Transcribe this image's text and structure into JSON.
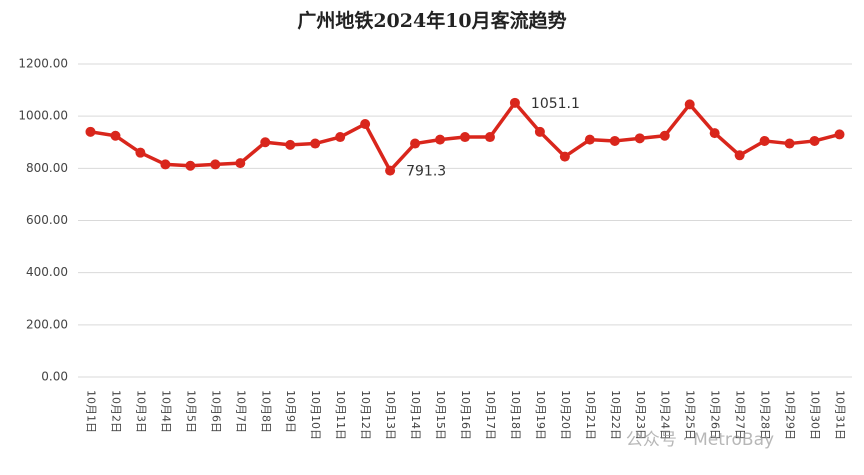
{
  "chart_data": {
    "type": "line",
    "title": "广州地铁2024年10月客流趋势",
    "categories": [
      "10月1日",
      "10月2日",
      "10月3日",
      "10月4日",
      "10月5日",
      "10月6日",
      "10月7日",
      "10月8日",
      "10月9日",
      "10月10日",
      "10月11日",
      "10月12日",
      "10月13日",
      "10月14日",
      "10月15日",
      "10月16日",
      "10月17日",
      "10月18日",
      "10月19日",
      "10月20日",
      "10月21日",
      "10月22日",
      "10月23日",
      "10月24日",
      "10月25日",
      "10月26日",
      "10月27日",
      "10月28日",
      "10月29日",
      "10月30日",
      "10月31日"
    ],
    "series": [
      {
        "color": "#d9261c",
        "values": [
          940,
          925,
          860,
          815,
          810,
          815,
          820,
          900,
          890,
          895,
          920,
          970,
          791.3,
          895,
          910,
          920,
          920,
          1051.1,
          940,
          845,
          910,
          905,
          915,
          925,
          1045,
          935,
          850,
          905,
          895,
          905,
          930
        ]
      }
    ],
    "ylim": [
      0,
      1200
    ],
    "yticks": [
      {
        "value": 0,
        "label": "0.00"
      },
      {
        "value": 200,
        "label": "200.00"
      },
      {
        "value": 400,
        "label": "400.00"
      },
      {
        "value": 600,
        "label": "600.00"
      },
      {
        "value": 800,
        "label": "800.00"
      },
      {
        "value": 1000,
        "label": "1000.00"
      },
      {
        "value": 1200,
        "label": "1200.00"
      }
    ],
    "grid": true,
    "watermark": "公众号 · MetroBay"
  }
}
